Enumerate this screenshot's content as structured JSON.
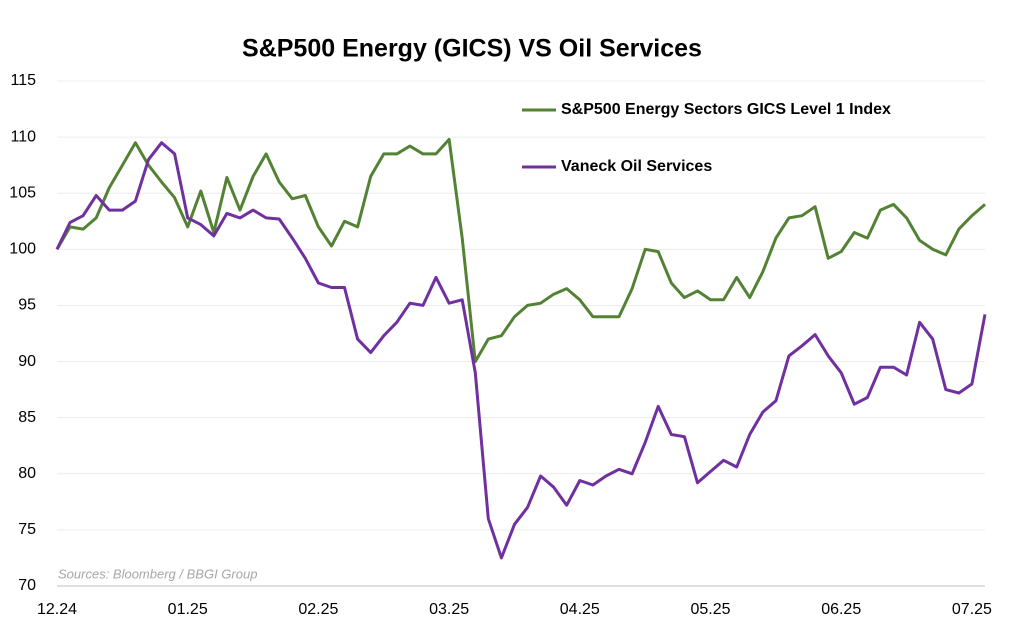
{
  "chart_data": {
    "type": "line",
    "title": "S&P500 Energy (GICS) VS Oil Services",
    "annotation": "Sources: Bloomberg / BBGI Group",
    "categories": [
      "12.24",
      null,
      null,
      null,
      null,
      null,
      null,
      null,
      null,
      null,
      "01.25",
      null,
      null,
      null,
      null,
      null,
      null,
      null,
      null,
      null,
      "02.25",
      null,
      null,
      null,
      null,
      null,
      null,
      null,
      null,
      null,
      "03.25",
      null,
      null,
      null,
      null,
      null,
      null,
      null,
      null,
      null,
      "04.25",
      null,
      null,
      null,
      null,
      null,
      null,
      null,
      null,
      null,
      "05.25",
      null,
      null,
      null,
      null,
      null,
      null,
      null,
      null,
      null,
      "06.25",
      null,
      null,
      null,
      null,
      null,
      null,
      null,
      null,
      null,
      "07.25",
      null
    ],
    "series": [
      {
        "name": "S&P500 Energy Sectors GICS Level 1 Index",
        "color": "#548235",
        "values": [
          100,
          102,
          101.8,
          102.8,
          105.5,
          107.5,
          109.5,
          107.5,
          106,
          104.6,
          102,
          105.2,
          101.5,
          106.4,
          103.5,
          106.5,
          108.5,
          106,
          104.5,
          104.8,
          102,
          100.3,
          102.5,
          102,
          106.5,
          108.5,
          108.5,
          109.2,
          108.5,
          108.5,
          109.8,
          101,
          90,
          92,
          92.3,
          94,
          95,
          95.2,
          96,
          96.5,
          95.5,
          94,
          94,
          94,
          96.5,
          100,
          99.8,
          97,
          95.7,
          96.3,
          95.5,
          95.5,
          97.5,
          95.7,
          98,
          101,
          102.8,
          103,
          103.8,
          99.2,
          99.8,
          101.5,
          101,
          103.5,
          104,
          102.8,
          100.8,
          100,
          99.5,
          101.8,
          103,
          104
        ]
      },
      {
        "name": "Vaneck Oil Services",
        "color": "#7030a0",
        "values": [
          100,
          102.4,
          103,
          104.8,
          103.5,
          103.5,
          104.3,
          108,
          109.5,
          108.5,
          102.8,
          102.2,
          101.2,
          103.2,
          102.8,
          103.5,
          102.8,
          102.7,
          101,
          99.2,
          97,
          96.6,
          96.6,
          92,
          90.8,
          92.3,
          93.5,
          95.2,
          95,
          97.5,
          95.2,
          95.5,
          89,
          76,
          72.5,
          75.5,
          77,
          79.8,
          78.8,
          77.2,
          79.4,
          79,
          79.8,
          80.4,
          80,
          82.8,
          86,
          83.5,
          83.3,
          79.2,
          80.2,
          81.2,
          80.6,
          83.5,
          85.5,
          86.5,
          90.5,
          91.4,
          92.4,
          90.5,
          89,
          86.2,
          86.8,
          89.5,
          89.5,
          88.8,
          93.5,
          92,
          87.5,
          87.2,
          88,
          94.2
        ]
      }
    ],
    "ylim": [
      70,
      115
    ],
    "yticks": [
      70,
      75,
      80,
      85,
      90,
      95,
      100,
      105,
      110,
      115
    ],
    "grid": true,
    "legend": "upper right"
  }
}
